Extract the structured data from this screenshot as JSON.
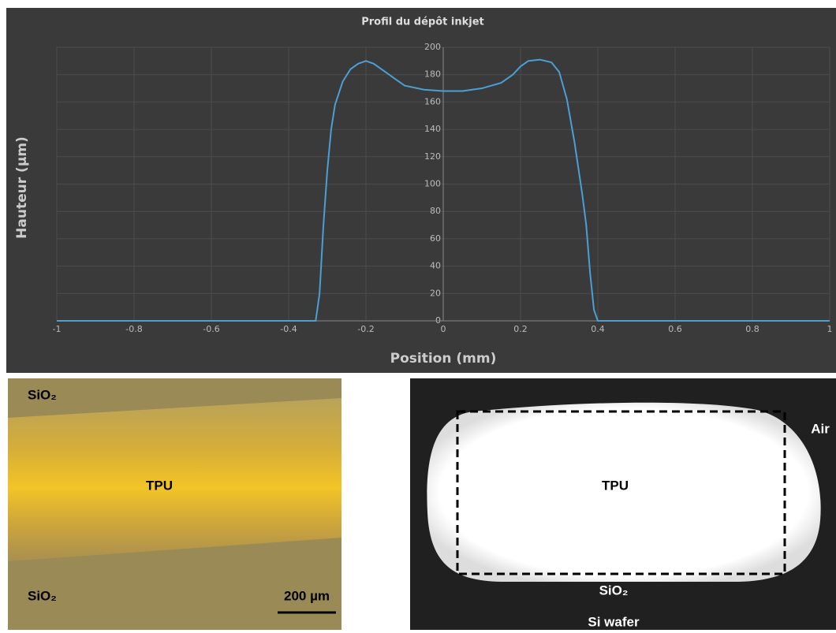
{
  "chart_data": {
    "type": "line",
    "title": "Profil du dépôt inkjet",
    "x_label": "Position (mm)",
    "y_label": "Hauteur (µm)",
    "x": [
      -1,
      -0.33,
      -0.32,
      -0.31,
      -0.3,
      -0.29,
      -0.28,
      -0.26,
      -0.24,
      -0.22,
      -0.2,
      -0.18,
      -0.15,
      -0.12,
      -0.1,
      -0.05,
      0,
      0.05,
      0.1,
      0.15,
      0.18,
      0.2,
      0.22,
      0.25,
      0.28,
      0.3,
      0.32,
      0.34,
      0.36,
      0.37,
      0.38,
      0.39,
      0.4,
      1
    ],
    "values": [
      0,
      0,
      20,
      70,
      110,
      140,
      158,
      175,
      184,
      188,
      190,
      188,
      182,
      176,
      172,
      169,
      168,
      168,
      170,
      174,
      180,
      186,
      190,
      191,
      189,
      182,
      162,
      130,
      92,
      70,
      35,
      8,
      0,
      0
    ],
    "color": "#4a9fd5",
    "xlim": [
      -1,
      1
    ],
    "xticks": [
      -1,
      -0.8,
      -0.6,
      -0.4,
      -0.2,
      0,
      0.2,
      0.4,
      0.6,
      0.8,
      1
    ],
    "ylim": [
      0,
      200
    ],
    "yticks": [
      0,
      20,
      40,
      60,
      80,
      100,
      120,
      140,
      160,
      180,
      200
    ],
    "grid": true
  },
  "optical_image": {
    "labels": [
      "SiO₂",
      "TPU",
      "SiO₂"
    ],
    "scale_bar": "200 µm"
  },
  "cross_section_image": {
    "labels": [
      "Air",
      "TPU",
      "SiO₂",
      "Si wafer"
    ]
  }
}
